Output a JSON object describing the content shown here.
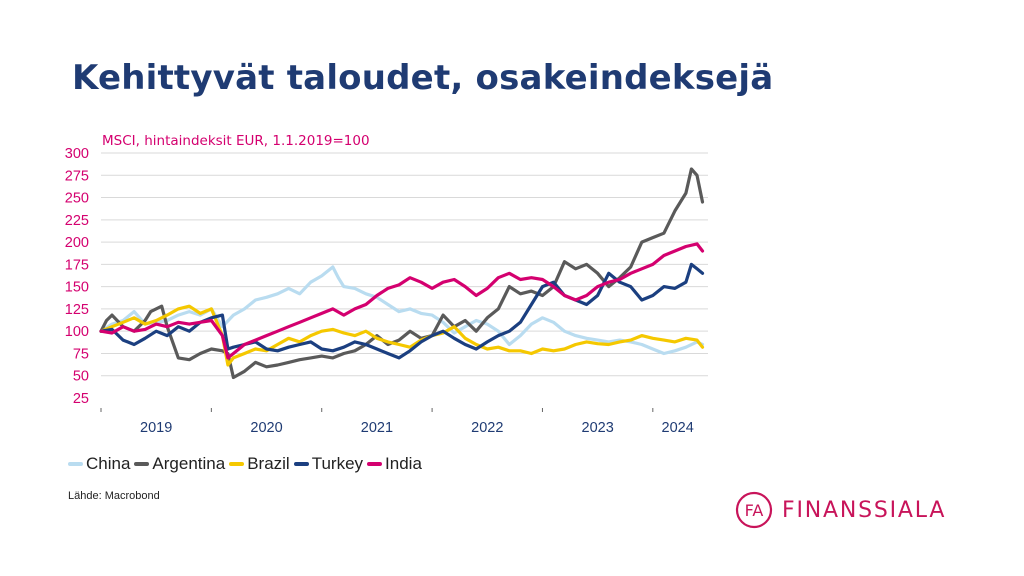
{
  "page": {
    "title": "Kehittyvät taloudet, osakeindeksejä",
    "source": "Lähde: Macrobond",
    "logo_text": "FINANSSIALA",
    "logo_mark": "FA"
  },
  "colors": {
    "title": "#1f3b73",
    "subtitle": "#d4006f",
    "y_tick": "#d4006f",
    "x_tick": "#1f3b73",
    "logo": "#c8145a"
  },
  "chart_data": {
    "type": "line",
    "title": "",
    "subtitle": "MSCI, hintaindeksit EUR, 1.1.2019=100",
    "xlabel": "",
    "ylabel": "",
    "ylim": [
      25,
      300
    ],
    "xlim": [
      2019.0,
      2024.5
    ],
    "y_ticks": [
      "300",
      "275",
      "250",
      "225",
      "200",
      "175",
      "150",
      "125",
      "100",
      "75",
      "50",
      "25"
    ],
    "x_tick_labels": [
      "2019",
      "2020",
      "2021",
      "2022",
      "2023",
      "2024"
    ],
    "grid": true,
    "legend_position": "bottom",
    "series": [
      {
        "name": "China",
        "color": "#b9dcf0",
        "x": [
          2019.0,
          2019.1,
          2019.2,
          2019.3,
          2019.4,
          2019.5,
          2019.6,
          2019.7,
          2019.8,
          2019.9,
          2020.0,
          2020.1,
          2020.2,
          2020.3,
          2020.4,
          2020.5,
          2020.6,
          2020.7,
          2020.8,
          2020.9,
          2021.0,
          2021.1,
          2021.15,
          2021.2,
          2021.3,
          2021.4,
          2021.5,
          2021.6,
          2021.7,
          2021.8,
          2021.9,
          2022.0,
          2022.1,
          2022.2,
          2022.3,
          2022.4,
          2022.5,
          2022.6,
          2022.7,
          2022.8,
          2022.9,
          2023.0,
          2023.1,
          2023.2,
          2023.3,
          2023.4,
          2023.5,
          2023.6,
          2023.7,
          2023.8,
          2023.9,
          2024.0,
          2024.1,
          2024.2,
          2024.3,
          2024.4,
          2024.45
        ],
        "values": [
          100,
          108,
          112,
          122,
          108,
          110,
          112,
          118,
          122,
          118,
          125,
          105,
          118,
          125,
          135,
          138,
          142,
          148,
          142,
          155,
          162,
          172,
          160,
          150,
          148,
          142,
          138,
          130,
          122,
          125,
          120,
          118,
          110,
          98,
          105,
          112,
          108,
          100,
          85,
          95,
          108,
          115,
          110,
          100,
          95,
          92,
          90,
          88,
          90,
          88,
          85,
          80,
          75,
          78,
          82,
          88,
          85
        ]
      },
      {
        "name": "Argentina",
        "color": "#5a5a5a",
        "x": [
          2019.0,
          2019.05,
          2019.1,
          2019.2,
          2019.3,
          2019.4,
          2019.45,
          2019.55,
          2019.6,
          2019.7,
          2019.8,
          2019.9,
          2020.0,
          2020.1,
          2020.15,
          2020.2,
          2020.3,
          2020.4,
          2020.5,
          2020.6,
          2020.7,
          2020.8,
          2020.9,
          2021.0,
          2021.1,
          2021.2,
          2021.3,
          2021.4,
          2021.5,
          2021.6,
          2021.7,
          2021.8,
          2021.9,
          2022.0,
          2022.1,
          2022.2,
          2022.3,
          2022.4,
          2022.5,
          2022.6,
          2022.7,
          2022.8,
          2022.9,
          2023.0,
          2023.1,
          2023.2,
          2023.3,
          2023.4,
          2023.5,
          2023.6,
          2023.7,
          2023.8,
          2023.9,
          2024.0,
          2024.1,
          2024.2,
          2024.3,
          2024.35,
          2024.4,
          2024.45
        ],
        "values": [
          100,
          112,
          118,
          105,
          100,
          112,
          122,
          128,
          105,
          70,
          68,
          75,
          80,
          78,
          75,
          48,
          55,
          65,
          60,
          62,
          65,
          68,
          70,
          72,
          70,
          75,
          78,
          85,
          95,
          85,
          90,
          100,
          92,
          95,
          118,
          105,
          112,
          100,
          115,
          125,
          150,
          142,
          145,
          140,
          150,
          178,
          170,
          175,
          165,
          150,
          160,
          172,
          200,
          205,
          210,
          235,
          255,
          282,
          275,
          245
        ]
      },
      {
        "name": "Brazil",
        "color": "#f5c800",
        "x": [
          2019.0,
          2019.1,
          2019.2,
          2019.3,
          2019.4,
          2019.5,
          2019.6,
          2019.7,
          2019.8,
          2019.9,
          2020.0,
          2020.1,
          2020.15,
          2020.2,
          2020.3,
          2020.4,
          2020.5,
          2020.6,
          2020.7,
          2020.8,
          2020.9,
          2021.0,
          2021.1,
          2021.2,
          2021.3,
          2021.4,
          2021.5,
          2021.6,
          2021.7,
          2021.8,
          2021.9,
          2022.0,
          2022.1,
          2022.2,
          2022.3,
          2022.4,
          2022.5,
          2022.6,
          2022.7,
          2022.8,
          2022.9,
          2023.0,
          2023.1,
          2023.2,
          2023.3,
          2023.4,
          2023.5,
          2023.6,
          2023.7,
          2023.8,
          2023.9,
          2024.0,
          2024.1,
          2024.2,
          2024.3,
          2024.4,
          2024.45
        ],
        "values": [
          100,
          105,
          110,
          115,
          108,
          112,
          118,
          125,
          128,
          120,
          125,
          95,
          62,
          70,
          75,
          80,
          78,
          85,
          92,
          88,
          95,
          100,
          102,
          98,
          95,
          100,
          92,
          88,
          85,
          82,
          90,
          95,
          98,
          105,
          92,
          85,
          80,
          82,
          78,
          78,
          75,
          80,
          78,
          80,
          85,
          88,
          86,
          85,
          88,
          90,
          95,
          92,
          90,
          88,
          92,
          90,
          82
        ]
      },
      {
        "name": "Turkey",
        "color": "#1b3f80",
        "x": [
          2019.0,
          2019.1,
          2019.2,
          2019.3,
          2019.4,
          2019.5,
          2019.6,
          2019.7,
          2019.8,
          2019.9,
          2020.0,
          2020.1,
          2020.15,
          2020.2,
          2020.3,
          2020.4,
          2020.5,
          2020.6,
          2020.7,
          2020.8,
          2020.9,
          2021.0,
          2021.1,
          2021.2,
          2021.3,
          2021.4,
          2021.5,
          2021.6,
          2021.7,
          2021.8,
          2021.9,
          2022.0,
          2022.1,
          2022.2,
          2022.3,
          2022.4,
          2022.5,
          2022.6,
          2022.7,
          2022.8,
          2022.9,
          2023.0,
          2023.1,
          2023.2,
          2023.3,
          2023.4,
          2023.5,
          2023.6,
          2023.7,
          2023.8,
          2023.9,
          2024.0,
          2024.1,
          2024.2,
          2024.3,
          2024.35,
          2024.4,
          2024.45
        ],
        "values": [
          100,
          102,
          90,
          85,
          92,
          100,
          95,
          105,
          100,
          110,
          115,
          118,
          80,
          82,
          85,
          88,
          80,
          78,
          82,
          85,
          88,
          80,
          78,
          82,
          88,
          85,
          80,
          75,
          70,
          78,
          88,
          95,
          100,
          92,
          85,
          80,
          88,
          95,
          100,
          110,
          130,
          150,
          155,
          140,
          135,
          130,
          140,
          165,
          155,
          150,
          135,
          140,
          150,
          148,
          155,
          175,
          170,
          165
        ]
      },
      {
        "name": "India",
        "color": "#d4006f",
        "x": [
          2019.0,
          2019.1,
          2019.2,
          2019.3,
          2019.4,
          2019.5,
          2019.6,
          2019.7,
          2019.8,
          2019.9,
          2020.0,
          2020.1,
          2020.15,
          2020.2,
          2020.3,
          2020.4,
          2020.5,
          2020.6,
          2020.7,
          2020.8,
          2020.9,
          2021.0,
          2021.1,
          2021.2,
          2021.3,
          2021.4,
          2021.5,
          2021.6,
          2021.7,
          2021.8,
          2021.9,
          2022.0,
          2022.1,
          2022.2,
          2022.3,
          2022.4,
          2022.5,
          2022.6,
          2022.7,
          2022.8,
          2022.9,
          2023.0,
          2023.1,
          2023.2,
          2023.3,
          2023.4,
          2023.5,
          2023.6,
          2023.7,
          2023.8,
          2023.9,
          2024.0,
          2024.1,
          2024.2,
          2024.3,
          2024.4,
          2024.45
        ],
        "values": [
          100,
          98,
          105,
          100,
          102,
          108,
          105,
          110,
          108,
          110,
          112,
          95,
          70,
          75,
          85,
          90,
          95,
          100,
          105,
          110,
          115,
          120,
          125,
          118,
          125,
          130,
          140,
          148,
          152,
          160,
          155,
          148,
          155,
          158,
          150,
          140,
          148,
          160,
          165,
          158,
          160,
          158,
          150,
          140,
          135,
          140,
          150,
          155,
          158,
          165,
          170,
          175,
          185,
          190,
          195,
          198,
          190
        ]
      }
    ]
  }
}
